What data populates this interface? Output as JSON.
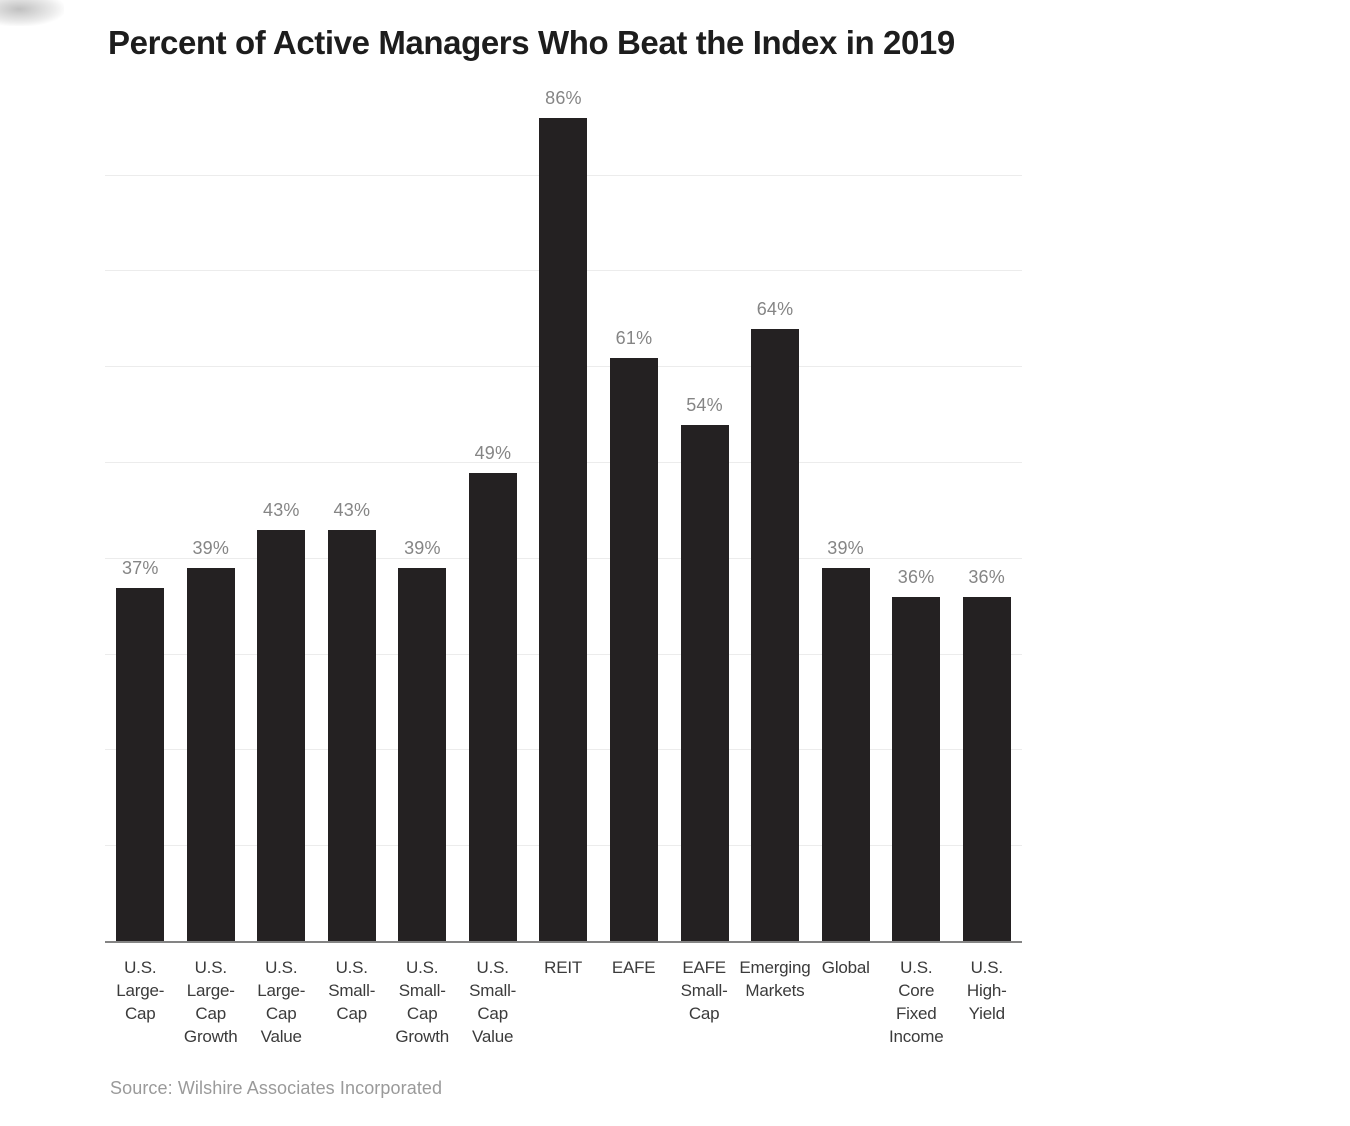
{
  "chart_data": {
    "type": "bar",
    "title": "Percent of Active Managers Who Beat the Index in 2019",
    "categories": [
      "U.S. Large-Cap",
      "U.S. Large-Cap Growth",
      "U.S. Large-Cap Value",
      "U.S. Small-Cap",
      "U.S. Small-Cap Growth",
      "U.S. Small-Cap Value",
      "REIT",
      "EAFE",
      "EAFE Small-Cap",
      "Emerging Markets",
      "Global",
      "U.S. Core Fixed Income",
      "U.S. High-Yield"
    ],
    "category_label_lines": [
      "U.S.\nLarge-\nCap",
      "U.S.\nLarge-\nCap\nGrowth",
      "U.S.\nLarge-\nCap\nValue",
      "U.S.\nSmall-\nCap",
      "U.S.\nSmall-\nCap\nGrowth",
      "U.S.\nSmall-\nCap\nValue",
      "REIT",
      "EAFE",
      "EAFE\nSmall-\nCap",
      "Emerging\nMarkets",
      "Global",
      "U.S.\nCore\nFixed\nIncome",
      "U.S.\nHigh-\nYield"
    ],
    "values": [
      37,
      39,
      43,
      43,
      39,
      49,
      86,
      61,
      54,
      64,
      39,
      36,
      36
    ],
    "value_labels": [
      "37%",
      "39%",
      "43%",
      "43%",
      "39%",
      "49%",
      "86%",
      "61%",
      "54%",
      "64%",
      "39%",
      "36%",
      "36%"
    ],
    "unit": "%",
    "xlabel": "",
    "ylabel": "",
    "ylim": [
      0,
      88
    ],
    "gridline_levels": [
      10,
      20,
      30,
      40,
      50,
      60,
      70,
      80
    ],
    "ytick_labels_shown": false,
    "grid": "horizontal",
    "legend": "none",
    "source": "Source: Wilshire Associates Incorporated"
  },
  "colors": {
    "background": "#ffffff",
    "bar": "#242122",
    "title": "#1d1d1d",
    "value_label": "#858585",
    "tick_label": "#3b3b3b",
    "gridline": "#ececec",
    "axis_line": "#848484",
    "source": "#9a9a9a"
  }
}
